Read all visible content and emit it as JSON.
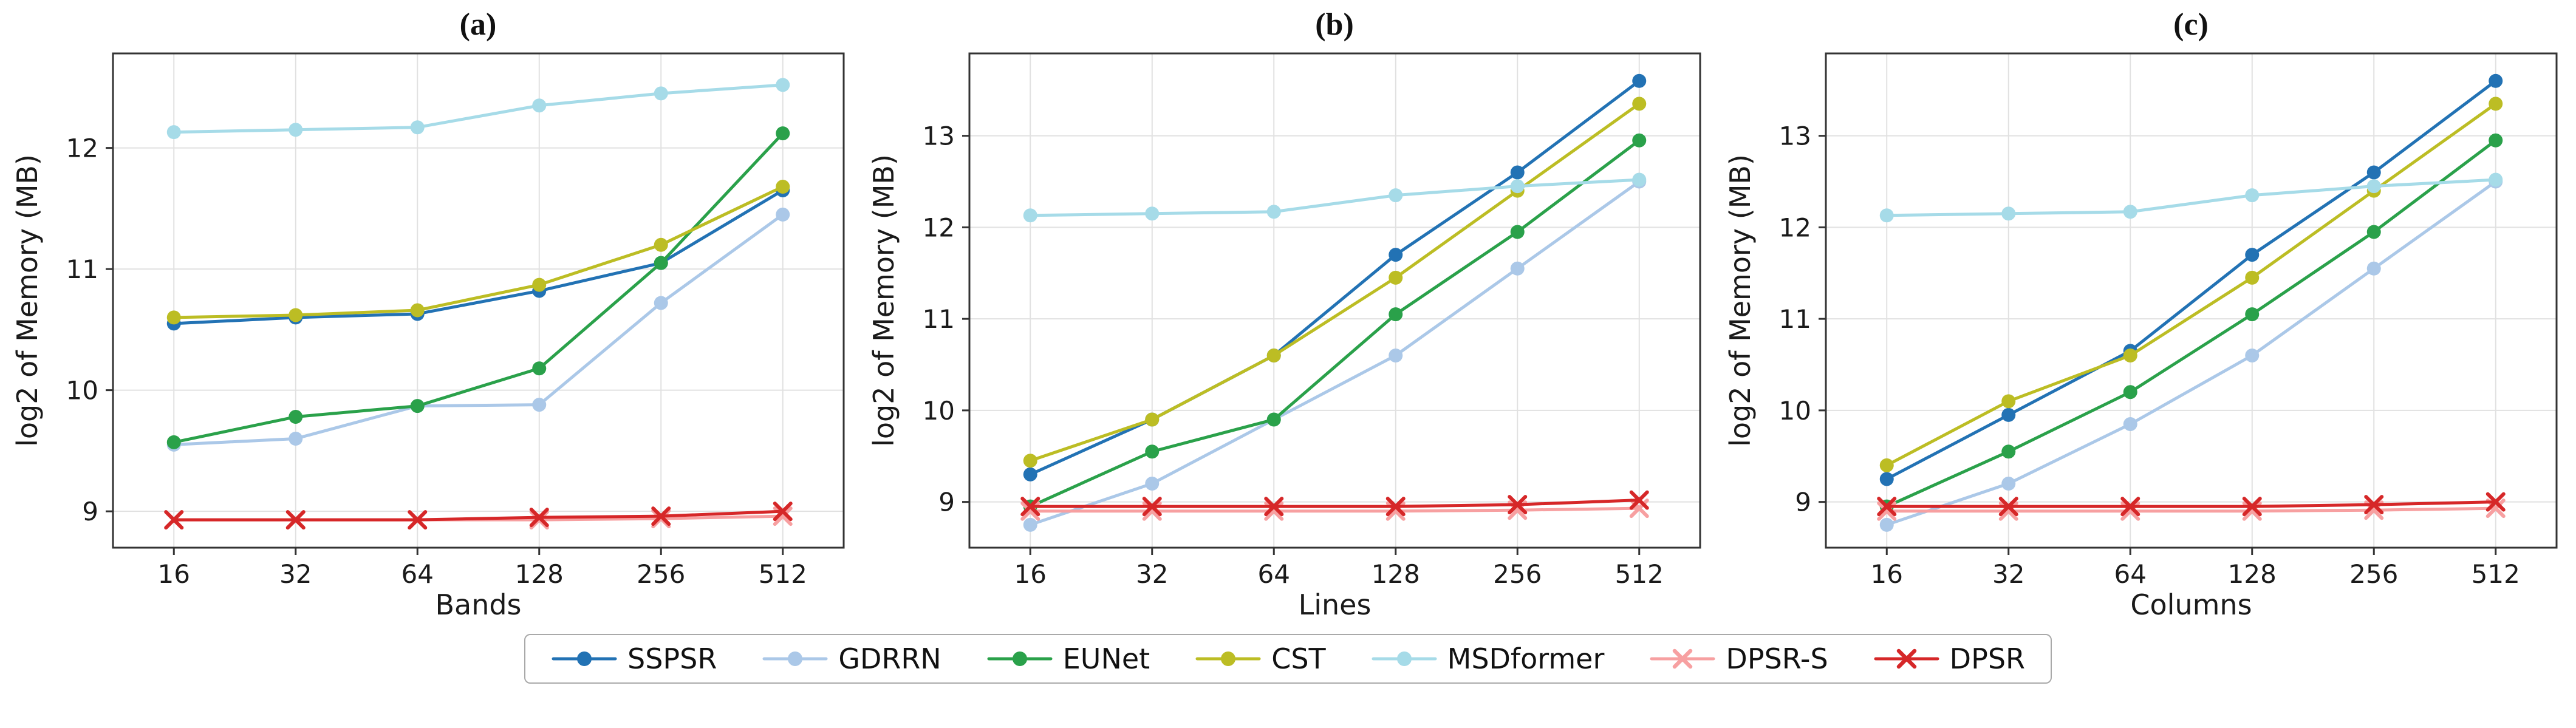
{
  "figure": {
    "description": "Memory footprint comparison line charts"
  },
  "chart_data": [
    {
      "type": "line",
      "panel_label": "(a)",
      "xlabel": "Bands",
      "ylabel": "log2 of Memory (MB)",
      "x": [
        16,
        32,
        64,
        128,
        256,
        512
      ],
      "ylim": [
        8.7,
        12.78
      ],
      "yticks": [
        9,
        10,
        11,
        12
      ],
      "grid": true,
      "series": [
        {
          "name": "SSPSR",
          "values": [
            10.55,
            10.6,
            10.63,
            10.82,
            11.05,
            11.65
          ]
        },
        {
          "name": "GDRRN",
          "values": [
            9.55,
            9.6,
            9.87,
            9.88,
            10.72,
            11.45
          ]
        },
        {
          "name": "EUNet",
          "values": [
            9.57,
            9.78,
            9.87,
            10.18,
            11.05,
            12.12
          ]
        },
        {
          "name": "CST",
          "values": [
            10.6,
            10.62,
            10.66,
            10.87,
            11.2,
            11.68
          ]
        },
        {
          "name": "MSDformer",
          "values": [
            12.13,
            12.15,
            12.17,
            12.35,
            12.45,
            12.52
          ]
        },
        {
          "name": "DPSR-S",
          "values": [
            8.93,
            8.93,
            8.93,
            8.93,
            8.94,
            8.96
          ]
        },
        {
          "name": "DPSR",
          "values": [
            8.93,
            8.93,
            8.93,
            8.95,
            8.96,
            9.0
          ]
        }
      ]
    },
    {
      "type": "line",
      "panel_label": "(b)",
      "xlabel": "Lines",
      "ylabel": "log2 of Memory (MB)",
      "x": [
        16,
        32,
        64,
        128,
        256,
        512
      ],
      "ylim": [
        8.5,
        13.9
      ],
      "yticks": [
        9,
        10,
        11,
        12,
        13
      ],
      "grid": true,
      "series": [
        {
          "name": "SSPSR",
          "values": [
            9.3,
            9.9,
            10.6,
            11.7,
            12.6,
            13.6
          ]
        },
        {
          "name": "GDRRN",
          "values": [
            8.75,
            9.2,
            9.9,
            10.6,
            11.55,
            12.5
          ]
        },
        {
          "name": "EUNet",
          "values": [
            8.95,
            9.55,
            9.9,
            11.05,
            11.95,
            12.95
          ]
        },
        {
          "name": "CST",
          "values": [
            9.45,
            9.9,
            10.6,
            11.45,
            12.4,
            13.35
          ]
        },
        {
          "name": "MSDformer",
          "values": [
            12.13,
            12.15,
            12.17,
            12.35,
            12.45,
            12.52
          ]
        },
        {
          "name": "DPSR-S",
          "values": [
            8.9,
            8.9,
            8.9,
            8.9,
            8.91,
            8.93
          ]
        },
        {
          "name": "DPSR",
          "values": [
            8.95,
            8.95,
            8.95,
            8.95,
            8.97,
            9.02
          ]
        }
      ]
    },
    {
      "type": "line",
      "panel_label": "(c)",
      "xlabel": "Columns",
      "ylabel": "log2 of Memory (MB)",
      "x": [
        16,
        32,
        64,
        128,
        256,
        512
      ],
      "ylim": [
        8.5,
        13.9
      ],
      "yticks": [
        9,
        10,
        11,
        12,
        13
      ],
      "grid": true,
      "series": [
        {
          "name": "SSPSR",
          "values": [
            9.25,
            9.95,
            10.65,
            11.7,
            12.6,
            13.6
          ]
        },
        {
          "name": "GDRRN",
          "values": [
            8.75,
            9.2,
            9.85,
            10.6,
            11.55,
            12.5
          ]
        },
        {
          "name": "EUNet",
          "values": [
            8.95,
            9.55,
            10.2,
            11.05,
            11.95,
            12.95
          ]
        },
        {
          "name": "CST",
          "values": [
            9.4,
            10.1,
            10.6,
            11.45,
            12.4,
            13.35
          ]
        },
        {
          "name": "MSDformer",
          "values": [
            12.13,
            12.15,
            12.17,
            12.35,
            12.45,
            12.52
          ]
        },
        {
          "name": "DPSR-S",
          "values": [
            8.9,
            8.9,
            8.9,
            8.9,
            8.91,
            8.93
          ]
        },
        {
          "name": "DPSR",
          "values": [
            8.95,
            8.95,
            8.95,
            8.95,
            8.97,
            9.0
          ]
        }
      ]
    }
  ],
  "legend": {
    "items": [
      {
        "label": "SSPSR",
        "color": "#2272b4",
        "marker": "circle"
      },
      {
        "label": "GDRRN",
        "color": "#abc8e8",
        "marker": "circle"
      },
      {
        "label": "EUNet",
        "color": "#2aa14a",
        "marker": "circle"
      },
      {
        "label": "CST",
        "color": "#bcbd24",
        "marker": "circle"
      },
      {
        "label": "MSDformer",
        "color": "#a6dbe8",
        "marker": "circle"
      },
      {
        "label": "DPSR-S",
        "color": "#f7a0a1",
        "marker": "x"
      },
      {
        "label": "DPSR",
        "color": "#d62728",
        "marker": "x"
      }
    ]
  },
  "style": {
    "grid_color": "#e1e1e1",
    "spine_color": "#333333",
    "text_color": "#1a1a1a"
  }
}
